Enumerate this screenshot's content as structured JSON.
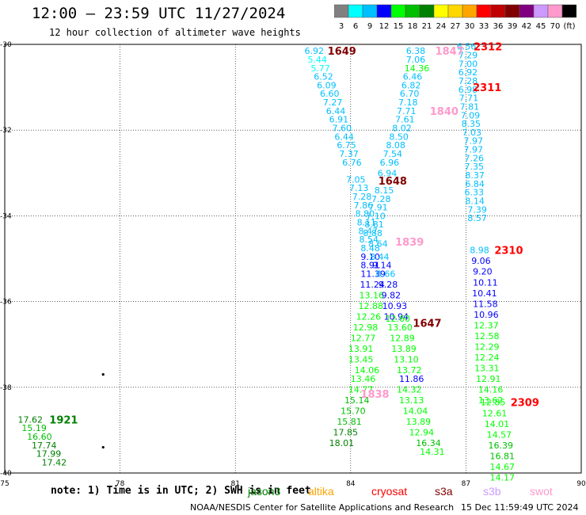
{
  "header": {
    "title": "12:00 – 23:59 UTC 11/27/2024",
    "subtitle": "12 hour collection of altimeter wave heights"
  },
  "colorbar": {
    "bins": [
      {
        "label": "3",
        "color": "#808080"
      },
      {
        "label": "6",
        "color": "#00ffff"
      },
      {
        "label": "9",
        "color": "#00bfff"
      },
      {
        "label": "12",
        "color": "#0000ff"
      },
      {
        "label": "15",
        "color": "#00ff00"
      },
      {
        "label": "18",
        "color": "#00bf00"
      },
      {
        "label": "21",
        "color": "#008000"
      },
      {
        "label": "24",
        "color": "#ffff00"
      },
      {
        "label": "27",
        "color": "#ffd700"
      },
      {
        "label": "30",
        "color": "#ffa500"
      },
      {
        "label": "33",
        "color": "#ff0000"
      },
      {
        "label": "36",
        "color": "#c00000"
      },
      {
        "label": "39",
        "color": "#800000"
      },
      {
        "label": "42",
        "color": "#800080"
      },
      {
        "label": "45",
        "color": "#cc99ff"
      },
      {
        "label": "70",
        "color": "#ff99cc"
      },
      {
        "label": "(ft)",
        "color": "#000000"
      }
    ]
  },
  "footer": {
    "note": "note: 1) Time is in UTC; 2) SWH is in feet",
    "credit": "NOAA/NESDIS Center for Satellite Applications and Research",
    "timestamp": "15 Dec 11:59:49 UTC 2024",
    "legend": [
      {
        "label": "jason3",
        "color": "#008000"
      },
      {
        "label": "altika",
        "color": "#ffa500"
      },
      {
        "label": "cryosat",
        "color": "#ff0000"
      },
      {
        "label": "s3a",
        "color": "#800000"
      },
      {
        "label": "s3b",
        "color": "#cc99ff"
      },
      {
        "label": "swot",
        "color": "#ff99cc"
      }
    ]
  },
  "chart_data": {
    "type": "scatter",
    "title": "12:00 – 23:59 UTC 11/27/2024",
    "subtitle": "12 hour collection of altimeter wave heights",
    "xlim": [
      75,
      90
    ],
    "ylim": [
      -40,
      -30
    ],
    "xticks": [
      "75",
      "78",
      "81",
      "84",
      "87",
      "90"
    ],
    "yticks": [
      "-30",
      "-32",
      "-34",
      "-36",
      "-38",
      "-40"
    ],
    "grid": true,
    "tracks": [
      {
        "name": "1649",
        "label_color": "#800000",
        "label_pos": [
          83.4,
          -30.15
        ],
        "points": [
          [
            82.8,
            -30.15,
            "6.92",
            "#00bfff"
          ],
          [
            82.88,
            -30.35,
            "5.44",
            "#00ffff"
          ],
          [
            82.96,
            -30.55,
            "5.77",
            "#00ffff"
          ],
          [
            83.04,
            -30.75,
            "6.52",
            "#00bfff"
          ],
          [
            83.12,
            -30.95,
            "6.09",
            "#00bfff"
          ],
          [
            83.2,
            -31.15,
            "6.60",
            "#00bfff"
          ],
          [
            83.28,
            -31.35,
            "7.27",
            "#00bfff"
          ],
          [
            83.36,
            -31.55,
            "6.44",
            "#00bfff"
          ],
          [
            83.44,
            -31.75,
            "6.91",
            "#00bfff"
          ],
          [
            83.52,
            -31.95,
            "7.60",
            "#00bfff"
          ],
          [
            83.58,
            -32.15,
            "6.44",
            "#00bfff"
          ],
          [
            83.64,
            -32.35,
            "6.75",
            "#00bfff"
          ],
          [
            83.7,
            -32.55,
            "7.37",
            "#00bfff"
          ],
          [
            83.78,
            -32.75,
            "6.76",
            "#00bfff"
          ],
          [
            83.88,
            -33.15,
            "7.05",
            "#00bfff"
          ],
          [
            83.96,
            -33.35,
            "7.13",
            "#00bfff"
          ],
          [
            84.04,
            -33.55,
            "7.28",
            "#00bfff"
          ],
          [
            84.08,
            -33.75,
            "7.86",
            "#00bfff"
          ],
          [
            84.12,
            -33.95,
            "8.80",
            "#00bfff"
          ],
          [
            84.16,
            -34.15,
            "8.11",
            "#00bfff"
          ],
          [
            84.2,
            -34.35,
            "8.47",
            "#00bfff"
          ],
          [
            84.22,
            -34.55,
            "8.54",
            "#00bfff"
          ],
          [
            84.26,
            -34.75,
            "8.48",
            "#00bfff"
          ],
          [
            84.26,
            -34.95,
            "9.10",
            "#0000ff"
          ],
          [
            84.26,
            -35.15,
            "8.91",
            "#0000ff"
          ],
          [
            84.26,
            -35.35,
            "11.39",
            "#0000ff"
          ],
          [
            84.24,
            -35.6,
            "11.24",
            "#0000ff"
          ],
          [
            84.22,
            -35.85,
            "13.16",
            "#00ff00"
          ],
          [
            84.2,
            -36.1,
            "12.88",
            "#00ff00"
          ],
          [
            84.14,
            -36.35,
            "12.26",
            "#00ff00"
          ],
          [
            84.06,
            -36.6,
            "12.98",
            "#00ff00"
          ],
          [
            84,
            -36.85,
            "12.77",
            "#00ff00"
          ],
          [
            83.94,
            -37.1,
            "13.91",
            "#00ff00"
          ],
          [
            83.94,
            -37.35,
            "13.45",
            "#00ff00"
          ],
          [
            84.1,
            -37.6,
            "14.06",
            "#00ff00"
          ],
          [
            84.0,
            -37.8,
            "13.46",
            "#00ff00"
          ],
          [
            83.94,
            -38.05,
            "14.77",
            "#00ff00"
          ],
          [
            83.84,
            -38.3,
            "15.14",
            "#00bf00"
          ],
          [
            83.74,
            -38.55,
            "15.70",
            "#00bf00"
          ],
          [
            83.64,
            -38.8,
            "15.81",
            "#00bf00"
          ],
          [
            83.54,
            -39.05,
            "17.85",
            "#008000"
          ],
          [
            83.44,
            -39.3,
            "18.01",
            "#008000"
          ]
        ]
      },
      {
        "name": "1648",
        "label_color": "#800000",
        "label_pos": [
          84.72,
          -33.18
        ],
        "points": [
          [
            85.44,
            -30.15,
            "6.38",
            "#00bfff"
          ],
          [
            85.44,
            -30.35,
            "7.06",
            "#00bfff"
          ],
          [
            85.4,
            -30.55,
            "14.36",
            "#00ff00"
          ],
          [
            85.36,
            -30.75,
            "6.46",
            "#00bfff"
          ],
          [
            85.32,
            -30.95,
            "6.82",
            "#00bfff"
          ],
          [
            85.28,
            -31.15,
            "6.70",
            "#00bfff"
          ],
          [
            85.24,
            -31.35,
            "7.18",
            "#00bfff"
          ],
          [
            85.2,
            -31.55,
            "7.71",
            "#00bfff"
          ],
          [
            85.16,
            -31.75,
            "7.61",
            "#00bfff"
          ],
          [
            85.08,
            -31.95,
            "8.02",
            "#00bfff"
          ],
          [
            85.0,
            -32.15,
            "8.50",
            "#00bfff"
          ],
          [
            84.92,
            -32.35,
            "8.08",
            "#00bfff"
          ],
          [
            84.84,
            -32.55,
            "7.54",
            "#00bfff"
          ],
          [
            84.76,
            -32.75,
            "6.96",
            "#00bfff"
          ],
          [
            84.7,
            -33.0,
            "6.94",
            "#00bfff"
          ],
          [
            84.62,
            -33.4,
            "8.15",
            "#00bfff"
          ],
          [
            84.54,
            -33.6,
            "7.28",
            "#00bfff"
          ],
          [
            84.46,
            -33.8,
            "7.91",
            "#00bfff"
          ],
          [
            84.4,
            -34.0,
            "7.10",
            "#00bfff"
          ],
          [
            84.36,
            -34.2,
            "8.81",
            "#00bfff"
          ],
          [
            84.32,
            -34.4,
            "8.88",
            "#00bfff"
          ],
          [
            84.46,
            -34.65,
            "8.64",
            "#00bfff"
          ],
          [
            84.5,
            -34.95,
            "8.44",
            "#00bfff"
          ],
          [
            84.56,
            -35.15,
            "9.14",
            "#0000ff"
          ],
          [
            84.66,
            -35.35,
            "8.66",
            "#00bfff"
          ],
          [
            84.72,
            -35.6,
            "9.28",
            "#0000ff"
          ],
          [
            84.8,
            -35.85,
            "9.82",
            "#0000ff"
          ],
          [
            84.82,
            -36.1,
            "10.93",
            "#0000ff"
          ],
          [
            84.86,
            -36.35,
            "10.94",
            "#0000ff"
          ],
          [
            84.9,
            -36.4,
            "12.60",
            "#00ff00"
          ],
          [
            84.96,
            -36.6,
            "13.60",
            "#00ff00"
          ],
          [
            85.02,
            -36.85,
            "12.89",
            "#00ff00"
          ],
          [
            85.06,
            -37.1,
            "13.89",
            "#00ff00"
          ],
          [
            85.12,
            -37.35,
            "13.10",
            "#00ff00"
          ],
          [
            85.2,
            -37.6,
            "13.72",
            "#00ff00"
          ],
          [
            85.26,
            -37.8,
            "11.86",
            "#0000ff"
          ],
          [
            85.2,
            -38.05,
            "14.32",
            "#00ff00"
          ],
          [
            85.26,
            -38.3,
            "13.13",
            "#00ff00"
          ],
          [
            85.36,
            -38.55,
            "14.04",
            "#00ff00"
          ],
          [
            85.44,
            -38.8,
            "13.89",
            "#00ff00"
          ],
          [
            85.52,
            -39.05,
            "12.94",
            "#00ff00"
          ],
          [
            85.7,
            -39.3,
            "16.34",
            "#00bf00"
          ],
          [
            85.8,
            -39.5,
            "14.31",
            "#00ff00"
          ]
        ]
      },
      {
        "name": "1647",
        "label_color": "#800000",
        "label_pos": [
          85.62,
          -36.5
        ],
        "points": []
      },
      {
        "name": "2312",
        "label_color": "#ff0000",
        "label_pos": [
          87.2,
          -30.05
        ],
        "points": [
          [
            86.76,
            -30.05,
            "6.56",
            "#00bfff"
          ],
          [
            86.8,
            -30.25,
            "7.29",
            "#00bfff"
          ],
          [
            86.8,
            -30.45,
            "7.00",
            "#00bfff"
          ],
          [
            86.8,
            -30.65,
            "6.92",
            "#00bfff"
          ],
          [
            86.8,
            -30.85,
            "7.28",
            "#00bfff"
          ],
          [
            86.8,
            -31.05,
            "6.98",
            "#00bfff"
          ],
          [
            86.82,
            -31.25,
            "7.71",
            "#00bfff"
          ],
          [
            86.84,
            -31.45,
            "7.81",
            "#00bfff"
          ],
          [
            86.86,
            -31.65,
            "7.09",
            "#00bfff"
          ],
          [
            86.88,
            -31.85,
            "8.35",
            "#00bfff"
          ],
          [
            86.9,
            -32.05,
            "7.03",
            "#00bfff"
          ],
          [
            86.94,
            -32.25,
            "7.97",
            "#00bfff"
          ],
          [
            86.94,
            -32.45,
            "7.97",
            "#00bfff"
          ],
          [
            86.96,
            -32.65,
            "7.26",
            "#00bfff"
          ],
          [
            86.96,
            -32.85,
            "7.35",
            "#00bfff"
          ],
          [
            86.98,
            -33.05,
            "8.37",
            "#00bfff"
          ],
          [
            86.98,
            -33.25,
            "6.84",
            "#00bfff"
          ],
          [
            86.96,
            -33.45,
            "6.33",
            "#00bfff"
          ],
          [
            86.98,
            -33.65,
            "8.14",
            "#00bfff"
          ],
          [
            87.04,
            -33.85,
            "7.39",
            "#00bfff"
          ],
          [
            87.04,
            -34.05,
            "8.57",
            "#00bfff"
          ]
        ]
      },
      {
        "name": "2311",
        "label_color": "#ff0000",
        "label_pos": [
          87.18,
          -31.0
        ],
        "points": []
      },
      {
        "name": "2310",
        "label_color": "#ff0000",
        "label_pos": [
          87.74,
          -34.8
        ],
        "points": [
          [
            87.1,
            -34.8,
            "8.98",
            "#00bfff"
          ],
          [
            87.14,
            -35.05,
            "9.06",
            "#0000ff"
          ],
          [
            87.18,
            -35.3,
            "9.20",
            "#0000ff"
          ],
          [
            87.18,
            -35.55,
            "10.11",
            "#0000ff"
          ],
          [
            87.16,
            -35.8,
            "10.41",
            "#0000ff"
          ],
          [
            87.18,
            -36.05,
            "11.58",
            "#0000ff"
          ],
          [
            87.2,
            -36.3,
            "10.96",
            "#0000ff"
          ],
          [
            87.2,
            -36.55,
            "12.37",
            "#00ff00"
          ],
          [
            87.22,
            -36.8,
            "12.58",
            "#00ff00"
          ],
          [
            87.22,
            -37.05,
            "12.29",
            "#00ff00"
          ],
          [
            87.22,
            -37.3,
            "12.24",
            "#00ff00"
          ],
          [
            87.22,
            -37.55,
            "13.31",
            "#00ff00"
          ],
          [
            87.26,
            -37.8,
            "12.91",
            "#00ff00"
          ],
          [
            87.32,
            -38.05,
            "14.16",
            "#00ff00"
          ],
          [
            87.32,
            -38.3,
            "13.62",
            "#00ff00"
          ]
        ]
      },
      {
        "name": "2309",
        "label_color": "#ff0000",
        "label_pos": [
          88.16,
          -38.35
        ],
        "points": [
          [
            87.38,
            -38.35,
            "12.85",
            "#00ff00"
          ],
          [
            87.42,
            -38.6,
            "12.61",
            "#00ff00"
          ],
          [
            87.48,
            -38.85,
            "14.01",
            "#00ff00"
          ],
          [
            87.54,
            -39.1,
            "14.57",
            "#00ff00"
          ],
          [
            87.58,
            -39.35,
            "16.39",
            "#00bf00"
          ],
          [
            87.62,
            -39.6,
            "16.81",
            "#00bf00"
          ],
          [
            87.62,
            -39.85,
            "14.67",
            "#00ff00"
          ],
          [
            87.62,
            -40.1,
            "14.17",
            "#00ff00"
          ]
        ]
      },
      {
        "name": "1847",
        "label_color": "#ff99cc",
        "label_pos": [
          86.2,
          -30.15
        ],
        "points": []
      },
      {
        "name": "1840",
        "label_color": "#ff99cc",
        "label_pos": [
          86.06,
          -31.55
        ],
        "points": []
      },
      {
        "name": "1839",
        "label_color": "#ff99cc",
        "label_pos": [
          85.16,
          -34.6
        ],
        "points": []
      },
      {
        "name": "1838",
        "label_color": "#ff99cc",
        "label_pos": [
          84.26,
          -38.15
        ],
        "points": []
      },
      {
        "name": "1921",
        "label_color": "#008000",
        "label_pos": [
          76.16,
          -38.75
        ],
        "points": [
          [
            75.34,
            -38.75,
            "17.62",
            "#008000"
          ],
          [
            75.44,
            -38.95,
            "15.19",
            "#00bf00"
          ],
          [
            75.58,
            -39.15,
            "16.60",
            "#00bf00"
          ],
          [
            75.7,
            -39.35,
            "17.74",
            "#008000"
          ],
          [
            75.82,
            -39.55,
            "17.99",
            "#008000"
          ],
          [
            75.96,
            -39.75,
            "17.42",
            "#008000"
          ]
        ]
      }
    ],
    "markers": [
      [
        77.56,
        -37.7
      ],
      [
        77.56,
        -39.4
      ]
    ]
  }
}
